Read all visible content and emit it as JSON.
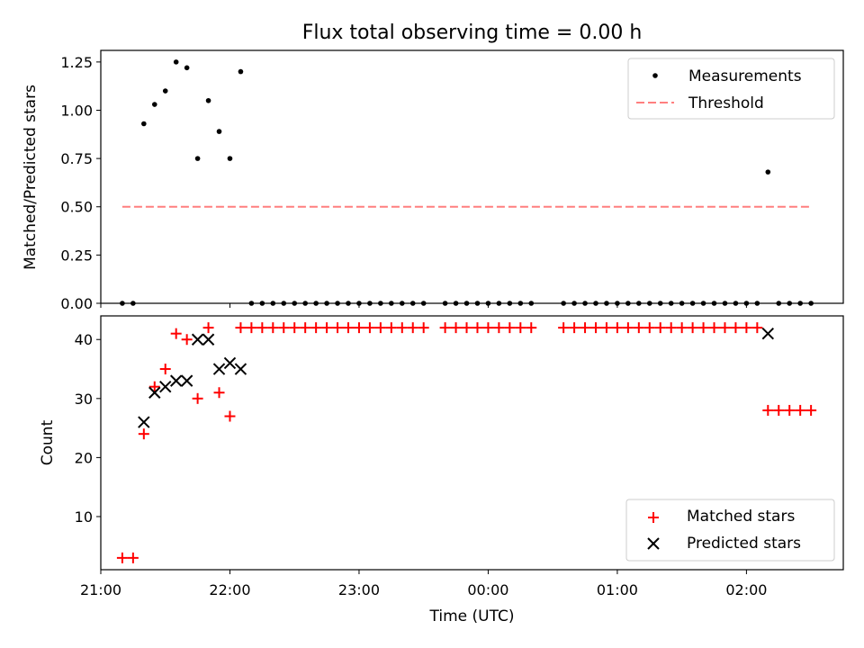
{
  "chart_data": [
    {
      "type": "scatter",
      "title": "Flux total observing time = 0.00 h",
      "xlabel": "",
      "ylabel": "Matched/Predicted stars",
      "xlim": [
        "21:00",
        "02:45"
      ],
      "ylim": [
        0,
        1.31
      ],
      "yticks": [
        "0.00",
        "0.25",
        "0.50",
        "0.75",
        "1.00",
        "1.25"
      ],
      "grid": false,
      "legend_position": "top-right",
      "legend": [
        "Measurements",
        "Threshold"
      ],
      "series": [
        {
          "name": "Measurements",
          "marker": "dot",
          "color": "#000000",
          "points": [
            [
              "21:10",
              0
            ],
            [
              "21:15",
              0
            ],
            [
              "21:20",
              0.93
            ],
            [
              "21:25",
              1.03
            ],
            [
              "21:30",
              1.1
            ],
            [
              "21:35",
              1.25
            ],
            [
              "21:40",
              1.22
            ],
            [
              "21:45",
              0.75
            ],
            [
              "21:50",
              1.05
            ],
            [
              "21:55",
              0.89
            ],
            [
              "22:00",
              0.75
            ],
            [
              "22:05",
              1.2
            ],
            [
              "22:10",
              0
            ],
            [
              "22:15",
              0
            ],
            [
              "22:20",
              0
            ],
            [
              "22:25",
              0
            ],
            [
              "22:30",
              0
            ],
            [
              "22:35",
              0
            ],
            [
              "22:40",
              0
            ],
            [
              "22:45",
              0
            ],
            [
              "22:50",
              0
            ],
            [
              "22:55",
              0
            ],
            [
              "23:00",
              0
            ],
            [
              "23:05",
              0
            ],
            [
              "23:10",
              0
            ],
            [
              "23:15",
              0
            ],
            [
              "23:20",
              0
            ],
            [
              "23:25",
              0
            ],
            [
              "23:30",
              0
            ],
            [
              "23:40",
              0
            ],
            [
              "23:45",
              0
            ],
            [
              "23:50",
              0
            ],
            [
              "23:55",
              0
            ],
            [
              "00:00",
              0
            ],
            [
              "00:05",
              0
            ],
            [
              "00:10",
              0
            ],
            [
              "00:15",
              0
            ],
            [
              "00:20",
              0
            ],
            [
              "00:35",
              0
            ],
            [
              "00:40",
              0
            ],
            [
              "00:45",
              0
            ],
            [
              "00:50",
              0
            ],
            [
              "00:55",
              0
            ],
            [
              "01:00",
              0
            ],
            [
              "01:05",
              0
            ],
            [
              "01:10",
              0
            ],
            [
              "01:15",
              0
            ],
            [
              "01:20",
              0
            ],
            [
              "01:25",
              0
            ],
            [
              "01:30",
              0
            ],
            [
              "01:35",
              0
            ],
            [
              "01:40",
              0
            ],
            [
              "01:45",
              0
            ],
            [
              "01:50",
              0
            ],
            [
              "01:55",
              0
            ],
            [
              "02:00",
              0
            ],
            [
              "02:05",
              0
            ],
            [
              "02:10",
              0.68
            ],
            [
              "02:15",
              0
            ],
            [
              "02:20",
              0
            ],
            [
              "02:25",
              0
            ],
            [
              "02:30",
              0
            ]
          ]
        },
        {
          "name": "Threshold",
          "type": "line",
          "style": "dashed",
          "color": "#ff7f7f",
          "points": [
            [
              "21:10",
              0.5
            ],
            [
              "02:30",
              0.5
            ]
          ]
        }
      ]
    },
    {
      "type": "scatter",
      "title": "",
      "xlabel": "Time (UTC)",
      "ylabel": "Count",
      "xticks": [
        "21:00",
        "22:00",
        "23:00",
        "00:00",
        "01:00",
        "02:00"
      ],
      "xlim": [
        "21:00",
        "02:45"
      ],
      "ylim": [
        1,
        44
      ],
      "yticks": [
        "10",
        "20",
        "30",
        "40"
      ],
      "grid": false,
      "legend_position": "bottom-right",
      "legend": [
        "Matched stars",
        "Predicted stars"
      ],
      "series": [
        {
          "name": "Matched stars",
          "marker": "plus",
          "color": "#ff0000",
          "points": [
            [
              "21:10",
              3
            ],
            [
              "21:15",
              3
            ],
            [
              "21:20",
              24
            ],
            [
              "21:25",
              32
            ],
            [
              "21:30",
              35
            ],
            [
              "21:35",
              41
            ],
            [
              "21:40",
              40
            ],
            [
              "21:45",
              30
            ],
            [
              "21:50",
              42
            ],
            [
              "21:55",
              31
            ],
            [
              "22:00",
              27
            ],
            [
              "22:05",
              42
            ],
            [
              "22:10",
              42
            ],
            [
              "22:15",
              42
            ],
            [
              "22:20",
              42
            ],
            [
              "22:25",
              42
            ],
            [
              "22:30",
              42
            ],
            [
              "22:35",
              42
            ],
            [
              "22:40",
              42
            ],
            [
              "22:45",
              42
            ],
            [
              "22:50",
              42
            ],
            [
              "22:55",
              42
            ],
            [
              "23:00",
              42
            ],
            [
              "23:05",
              42
            ],
            [
              "23:10",
              42
            ],
            [
              "23:15",
              42
            ],
            [
              "23:20",
              42
            ],
            [
              "23:25",
              42
            ],
            [
              "23:30",
              42
            ],
            [
              "23:40",
              42
            ],
            [
              "23:45",
              42
            ],
            [
              "23:50",
              42
            ],
            [
              "23:55",
              42
            ],
            [
              "00:00",
              42
            ],
            [
              "00:05",
              42
            ],
            [
              "00:10",
              42
            ],
            [
              "00:15",
              42
            ],
            [
              "00:20",
              42
            ],
            [
              "00:35",
              42
            ],
            [
              "00:40",
              42
            ],
            [
              "00:45",
              42
            ],
            [
              "00:50",
              42
            ],
            [
              "00:55",
              42
            ],
            [
              "01:00",
              42
            ],
            [
              "01:05",
              42
            ],
            [
              "01:10",
              42
            ],
            [
              "01:15",
              42
            ],
            [
              "01:20",
              42
            ],
            [
              "01:25",
              42
            ],
            [
              "01:30",
              42
            ],
            [
              "01:35",
              42
            ],
            [
              "01:40",
              42
            ],
            [
              "01:45",
              42
            ],
            [
              "01:50",
              42
            ],
            [
              "01:55",
              42
            ],
            [
              "02:00",
              42
            ],
            [
              "02:05",
              42
            ],
            [
              "02:10",
              28
            ],
            [
              "02:15",
              28
            ],
            [
              "02:20",
              28
            ],
            [
              "02:25",
              28
            ],
            [
              "02:30",
              28
            ]
          ]
        },
        {
          "name": "Predicted stars",
          "marker": "x",
          "color": "#000000",
          "points": [
            [
              "21:20",
              26
            ],
            [
              "21:25",
              31
            ],
            [
              "21:30",
              32
            ],
            [
              "21:35",
              33
            ],
            [
              "21:40",
              33
            ],
            [
              "21:45",
              40
            ],
            [
              "21:50",
              40
            ],
            [
              "21:55",
              35
            ],
            [
              "22:00",
              36
            ],
            [
              "22:05",
              35
            ],
            [
              "02:10",
              41
            ]
          ]
        }
      ]
    }
  ]
}
